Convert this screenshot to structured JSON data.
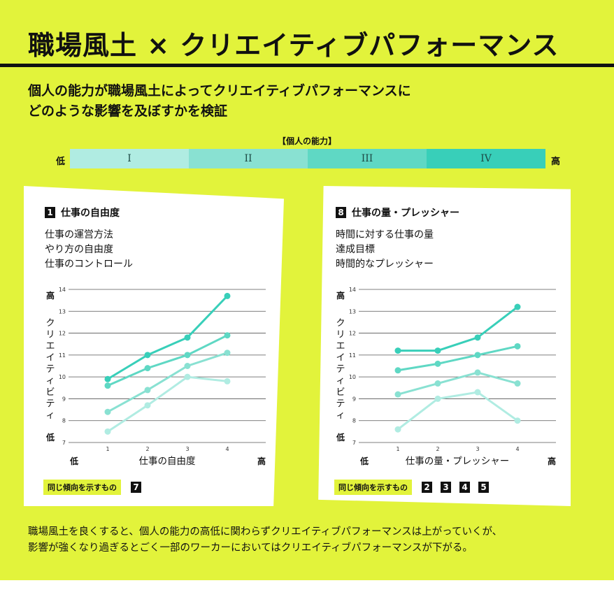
{
  "header": {
    "title": "職場風土 × クリエイティブパフォーマンス",
    "subtitle_line1": "個人の能力が職場風土によってクリエイティブパフォーマンスに",
    "subtitle_line2": "どのような影響を及ぼすかを検証"
  },
  "ability_scale": {
    "caption": "【個人の能力】",
    "low": "低",
    "high": "高",
    "levels": [
      {
        "label": "I",
        "color": "#b0ece2"
      },
      {
        "label": "II",
        "color": "#89e1d2"
      },
      {
        "label": "III",
        "color": "#5fd8c4"
      },
      {
        "label": "IV",
        "color": "#38cfb9"
      }
    ]
  },
  "panels": {
    "left": {
      "num": "1",
      "heading": "仕事の自由度",
      "desc": [
        "仕事の運営方法",
        "やり方の自由度",
        "仕事のコントロール"
      ],
      "legend_label": "同じ傾向を示すもの",
      "legend_nums": [
        "7"
      ]
    },
    "right": {
      "num": "8",
      "heading": "仕事の量・プレッシャー",
      "desc": [
        "時間に対する仕事の量",
        "達成目標",
        "時間的なプレッシャー"
      ],
      "legend_label": "同じ傾向を示すもの",
      "legend_nums": [
        "2",
        "3",
        "4",
        "5"
      ]
    }
  },
  "chart_data": [
    {
      "type": "line",
      "x": [
        1,
        2,
        3,
        4
      ],
      "xlabel": "仕事の自由度",
      "x_low": "低",
      "x_high": "高",
      "ylabel": "クリエイティビティ",
      "y_low": "低",
      "y_high": "高",
      "ylim": [
        7,
        14
      ],
      "yticks": [
        7,
        8,
        9,
        10,
        11,
        12,
        13,
        14
      ],
      "grid": true,
      "series": [
        {
          "values": [
            7.5,
            8.7,
            10.0,
            9.8
          ],
          "color": "#b0ece2"
        },
        {
          "values": [
            8.4,
            9.4,
            10.5,
            11.1
          ],
          "color": "#89e1d2"
        },
        {
          "values": [
            9.6,
            10.4,
            11.0,
            11.9
          ],
          "color": "#5fd8c4"
        },
        {
          "values": [
            9.9,
            11.0,
            11.8,
            13.7
          ],
          "color": "#38cfb9"
        }
      ]
    },
    {
      "type": "line",
      "x": [
        1,
        2,
        3,
        4
      ],
      "xlabel": "仕事の量・プレッシャー",
      "x_low": "低",
      "x_high": "高",
      "ylabel": "クリエイティビティ",
      "y_low": "低",
      "y_high": "高",
      "ylim": [
        7,
        14
      ],
      "yticks": [
        7,
        8,
        9,
        10,
        11,
        12,
        13,
        14
      ],
      "grid": true,
      "series": [
        {
          "values": [
            7.6,
            9.0,
            9.3,
            8.0
          ],
          "color": "#b0ece2"
        },
        {
          "values": [
            9.2,
            9.7,
            10.2,
            9.7
          ],
          "color": "#89e1d2"
        },
        {
          "values": [
            10.3,
            10.6,
            11.0,
            11.4
          ],
          "color": "#5fd8c4"
        },
        {
          "values": [
            11.2,
            11.2,
            11.8,
            13.2
          ],
          "color": "#38cfb9"
        }
      ]
    }
  ],
  "conclusion": {
    "line1": "職場風土を良くすると、個人の能力の高低に関わらずクリエイティブパフォーマンスは上がっていくが、",
    "line2": "影響が強くなり過ぎるとごく一部のワーカーにおいてはクリエイティブパフォーマンスが下がる。"
  }
}
